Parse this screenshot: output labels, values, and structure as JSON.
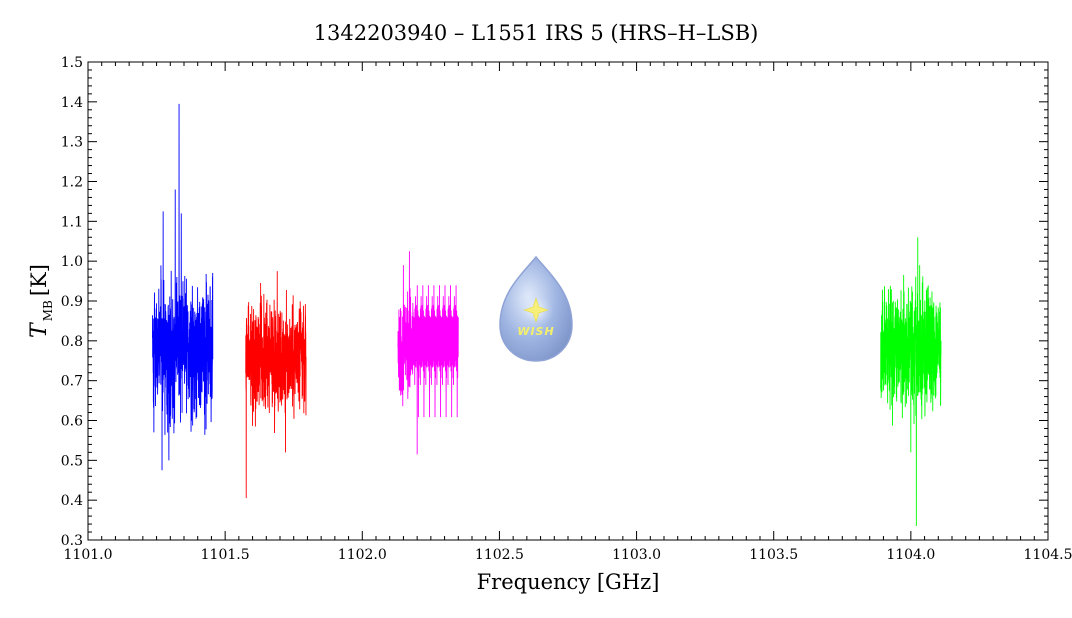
{
  "chart_data": {
    "type": "line",
    "title": "1342203940 – L1551 IRS 5 (HRS–H–LSB)",
    "xlabel": "Frequency [GHz]",
    "ylabel_main": "T",
    "ylabel_sub": "MB",
    "ylabel_unit": "[K]",
    "xlim": [
      1101.0,
      1104.5
    ],
    "ylim": [
      0.3,
      1.5
    ],
    "x_ticks": [
      1101.0,
      1101.5,
      1102.0,
      1102.5,
      1103.0,
      1103.5,
      1104.0,
      1104.5
    ],
    "x_tick_labels": [
      "1101.0",
      "1101.5",
      "1102.0",
      "1102.5",
      "1103.0",
      "1103.5",
      "1104.0",
      "1104.5"
    ],
    "y_ticks": [
      0.3,
      0.4,
      0.5,
      0.6,
      0.7,
      0.8,
      0.9,
      1.0,
      1.1,
      1.2,
      1.3,
      1.4,
      1.5
    ],
    "y_tick_labels": [
      "0.3",
      "0.4",
      "0.5",
      "0.6",
      "0.7",
      "0.8",
      "0.9",
      "1.0",
      "1.1",
      "1.2",
      "1.3",
      "1.4",
      "1.5"
    ],
    "series": [
      {
        "color": "#0000ff",
        "x_start": 1101.235,
        "x_end": 1101.455,
        "mean": 0.78,
        "noise": 0.085,
        "seed": 11,
        "spikes": [
          [
            1101.332,
            1.395
          ],
          [
            1101.318,
            1.18
          ],
          [
            1101.274,
            1.125
          ],
          [
            1101.27,
            0.475
          ],
          [
            1101.295,
            0.5
          ],
          [
            1101.34,
            1.12
          ]
        ]
      },
      {
        "color": "#ff0000",
        "x_start": 1101.575,
        "x_end": 1101.795,
        "mean": 0.76,
        "noise": 0.07,
        "seed": 23,
        "spikes": [
          [
            1101.577,
            0.405
          ],
          [
            1101.69,
            0.975
          ],
          [
            1101.72,
            0.52
          ]
        ]
      },
      {
        "color": "#ff00ff",
        "x_start": 1102.13,
        "x_end": 1102.35,
        "mean": 0.77,
        "noise": 0.065,
        "seed": 37,
        "spikes": [
          [
            1102.172,
            1.025
          ],
          [
            1102.2,
            0.515
          ],
          [
            1102.15,
            0.99
          ]
        ]
      },
      {
        "color": "#00ff00",
        "x_start": 1103.89,
        "x_end": 1104.11,
        "mean": 0.78,
        "noise": 0.075,
        "seed": 53,
        "spikes": [
          [
            1104.02,
            0.335
          ],
          [
            1104.025,
            1.06
          ],
          [
            1104.0,
            0.52
          ],
          [
            1104.032,
            0.99
          ]
        ]
      }
    ]
  },
  "logo": {
    "text": "WISH"
  }
}
